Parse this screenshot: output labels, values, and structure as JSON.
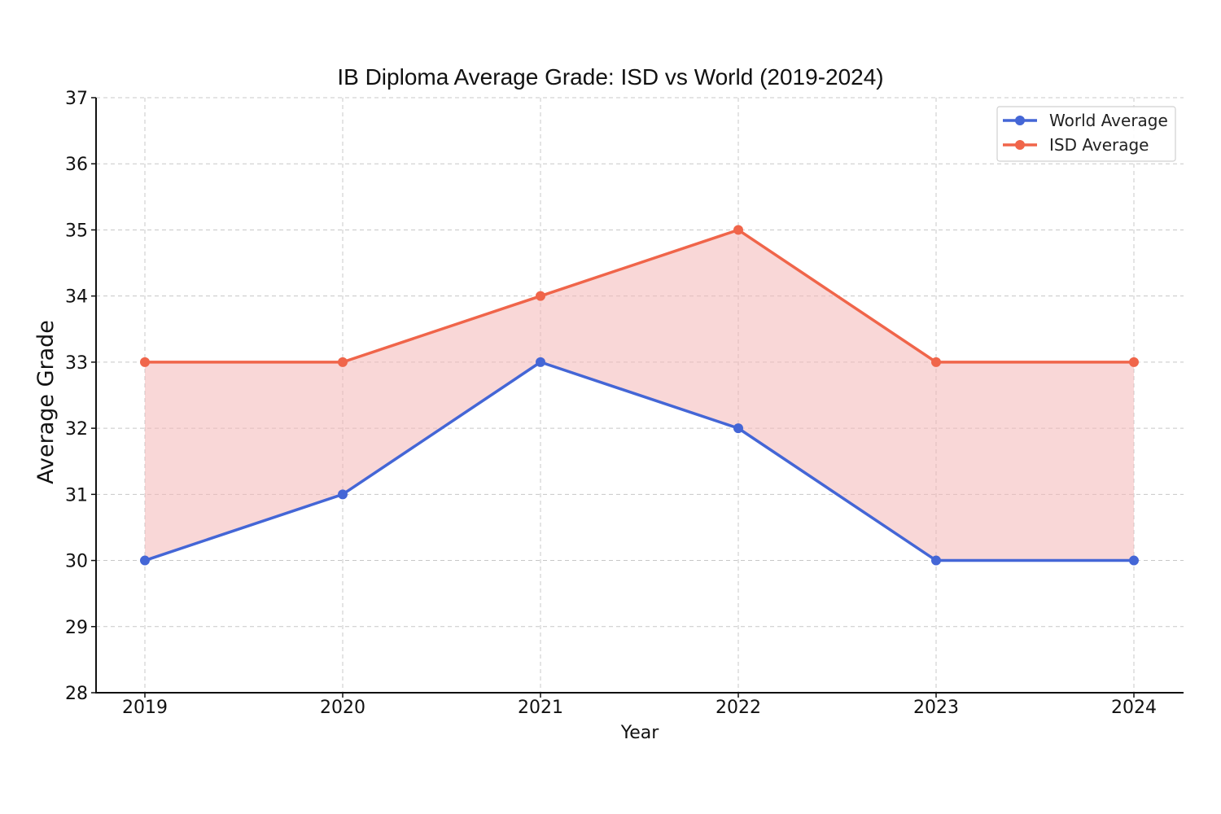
{
  "chart_data": {
    "type": "line",
    "title": "IB Diploma Average Grade: ISD vs World (2019-2024)",
    "xlabel": "Year",
    "ylabel": "Average Grade",
    "categories": [
      "2019",
      "2020",
      "2021",
      "2022",
      "2023",
      "2024"
    ],
    "ylim": [
      28,
      37
    ],
    "yticks": [
      28,
      29,
      30,
      31,
      32,
      33,
      34,
      35,
      36,
      37
    ],
    "grid": true,
    "legend_position": "top-right",
    "fill_between": {
      "color": "#f4b6b6",
      "opacity": 0.55
    },
    "series": [
      {
        "name": "World Average",
        "color": "#4466d6",
        "values": [
          30,
          31,
          33,
          32,
          30,
          30
        ]
      },
      {
        "name": "ISD Average",
        "color": "#f0654a",
        "values": [
          33,
          33,
          34,
          35,
          33,
          33
        ]
      }
    ]
  }
}
